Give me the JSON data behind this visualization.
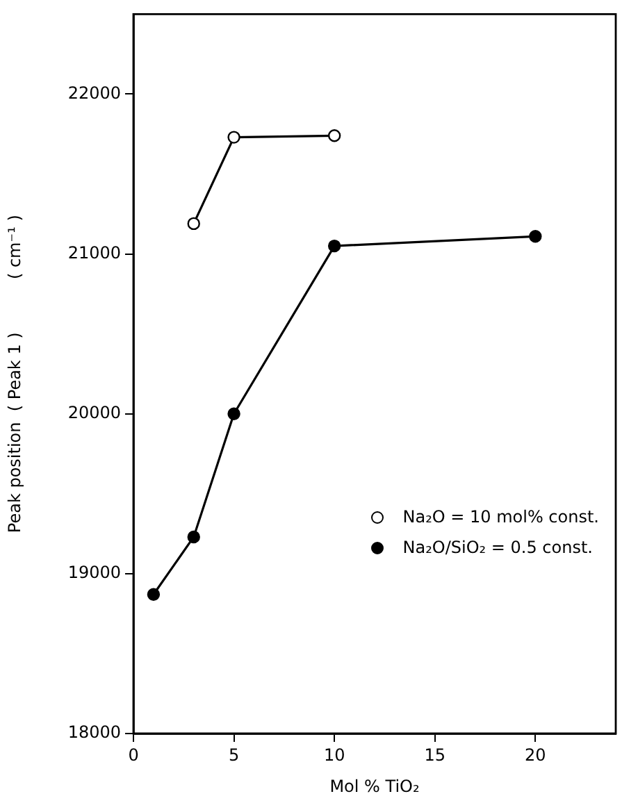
{
  "chart_data": {
    "type": "line",
    "xlabel": "Mol % TiO₂",
    "ylabel": "Peak position  ( Peak 1 )          ( cm⁻¹ )",
    "xlim": [
      0,
      24
    ],
    "xticks": [
      0,
      5,
      10,
      15,
      20
    ],
    "ylim": [
      18000,
      22500
    ],
    "yticks": [
      18000,
      19000,
      20000,
      21000,
      22000
    ],
    "grid": false,
    "legend": "bottom right",
    "marker": "circle",
    "line_style": "solid",
    "series": [
      {
        "name": "Na₂O = 10 mol% const.",
        "color": "#000000",
        "colors": [
          "#ffffff",
          "#ffffff",
          "#ffffff"
        ],
        "x": [
          3,
          5,
          10
        ],
        "values": [
          21190,
          21730,
          21740
        ]
      },
      {
        "name": "Na₂O/SiO₂ = 0.5 const.",
        "color": "#000000",
        "colors": [
          "#000000",
          "#000000",
          "#000000",
          "#000000",
          "#000000"
        ],
        "x": [
          1,
          3,
          5,
          10,
          20
        ],
        "values": [
          18870,
          19230,
          20000,
          21050,
          21110
        ]
      }
    ]
  }
}
